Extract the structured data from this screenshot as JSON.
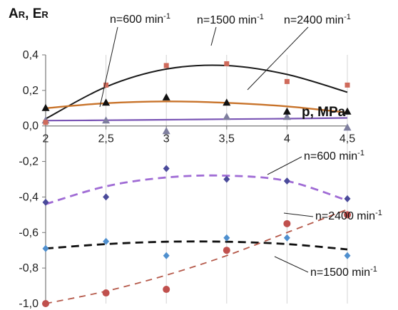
{
  "chart_data": {
    "type": "scatter",
    "ylabel_main": "A",
    "ylabel_sub1": "R",
    "ylabel_sep": ", ",
    "ylabel_main2": "E",
    "ylabel_sub2": "R",
    "xlabel": "p, MPa",
    "xlim": [
      2,
      4.5
    ],
    "ylim": [
      -1.0,
      0.4
    ],
    "x_ticks": [
      "2",
      "2,5",
      "3",
      "3,5",
      "4",
      "4,5"
    ],
    "y_ticks": [
      "0,4",
      "0,2",
      "0,0",
      "-0,2",
      "-0,4",
      "-0,6",
      "-0,8",
      "-1,0"
    ],
    "x": [
      2,
      2.5,
      3,
      3.5,
      4,
      4.5
    ],
    "grid": "vertical",
    "series": [
      {
        "name": "n=600 min-1",
        "group": "A_R",
        "marker": "triangle",
        "color": "#7a55b5",
        "values": [
          0.03,
          0.03,
          -0.03,
          0.05,
          0.05,
          -0.01
        ],
        "fit": [
          0.03,
          0.032,
          0.035,
          0.038,
          0.041,
          0.045
        ]
      },
      {
        "name": "n=1500 min-1",
        "group": "A_R",
        "marker": "square",
        "color": "#1a1a1a",
        "marker_color": "#cf6a5b",
        "values": [
          0.02,
          0.23,
          0.34,
          0.35,
          0.25,
          0.23
        ],
        "fit": [
          0.04,
          0.22,
          0.32,
          0.34,
          0.29,
          0.19
        ]
      },
      {
        "name": "n=2400 min-1",
        "group": "A_R",
        "marker": "triangle-black",
        "color": "#c8732a",
        "values": [
          0.1,
          0.13,
          0.16,
          0.13,
          0.08,
          0.08
        ],
        "fit": [
          0.1,
          0.128,
          0.138,
          0.13,
          0.11,
          0.075
        ]
      },
      {
        "name": "n=600 min-1",
        "group": "E_R",
        "marker": "diamond",
        "color": "#a06cd5",
        "marker_color": "#4a4a9a",
        "values": [
          -0.43,
          -0.4,
          -0.24,
          -0.3,
          -0.31,
          -0.41
        ],
        "fit": [
          -0.44,
          -0.34,
          -0.29,
          -0.28,
          -0.31,
          -0.42
        ]
      },
      {
        "name": "n=1500 min-1",
        "group": "E_R",
        "marker": "diamond-blue",
        "color": "#111111",
        "marker_color": "#4f8fce",
        "values": [
          -0.69,
          -0.65,
          -0.73,
          -0.63,
          -0.63,
          -0.73
        ],
        "fit": [
          -0.69,
          -0.665,
          -0.652,
          -0.652,
          -0.665,
          -0.695
        ]
      },
      {
        "name": "n=2400 min-1",
        "group": "E_R",
        "marker": "circle",
        "color": "#b5594a",
        "marker_color": "#c0504d",
        "values": [
          -1.0,
          -0.94,
          -0.92,
          -0.7,
          -0.55,
          -0.5
        ],
        "fit": [
          -1.0,
          -0.93,
          -0.84,
          -0.73,
          -0.6,
          -0.47
        ]
      }
    ],
    "annotations": [
      {
        "text_main": "n=600 min",
        "sup": "-1"
      },
      {
        "text_main": "n=1500 min",
        "sup": "-1"
      },
      {
        "text_main": "n=2400 min",
        "sup": "-1"
      },
      {
        "text_main": "n=600 min",
        "sup": "-1"
      },
      {
        "text_main": "n=2400 min",
        "sup": "-1"
      },
      {
        "text_main": "n=1500 min",
        "sup": "-1"
      }
    ]
  }
}
